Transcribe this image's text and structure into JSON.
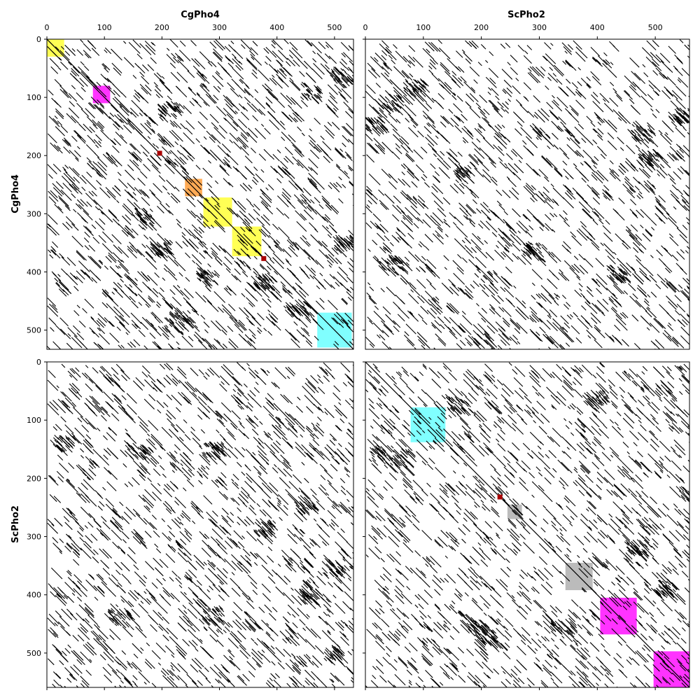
{
  "chart_data": {
    "type": "dotplot",
    "columns": [
      "CgPho4",
      "ScPho2"
    ],
    "rows": [
      "CgPho4",
      "ScPho2"
    ],
    "sequence_lengths": {
      "CgPho4": 533,
      "ScPho2": 559
    },
    "ticks": [
      0,
      100,
      200,
      300,
      400,
      500
    ],
    "tick_labels": [
      "0",
      "100",
      "200",
      "300",
      "400",
      "500"
    ],
    "grid": false,
    "y_axis_inverted": true,
    "colors": {
      "dots": "#000000",
      "yellow": "#ffff55",
      "magenta": "#ff33ff",
      "orange": "#ffaa55",
      "cyan": "#80ffff",
      "gray": "#bbbbbb",
      "dark_red": "#aa0000"
    },
    "panels": [
      {
        "id": "cgpho4-vs-cgpho4",
        "x_seq": "CgPho4",
        "y_seq": "CgPho4",
        "x_range": [
          0,
          533
        ],
        "y_range": [
          0,
          533
        ],
        "regions": [
          {
            "x": [
              0,
              30
            ],
            "y": [
              0,
              30
            ],
            "color": "yellow"
          },
          {
            "x": [
              80,
              110
            ],
            "y": [
              80,
              110
            ],
            "color": "magenta"
          },
          {
            "x": [
              240,
              270
            ],
            "y": [
              240,
              270
            ],
            "color": "orange"
          },
          {
            "x": [
              272,
              322
            ],
            "y": [
              272,
              322
            ],
            "color": "yellow"
          },
          {
            "x": [
              322,
              373
            ],
            "y": [
              322,
              373
            ],
            "color": "yellow"
          },
          {
            "x": [
              470,
              530
            ],
            "y": [
              470,
              530
            ],
            "color": "cyan"
          }
        ],
        "points": [
          {
            "x": 196,
            "y": 196,
            "color": "dark_red"
          },
          {
            "x": 377,
            "y": 377,
            "color": "dark_red"
          }
        ]
      },
      {
        "id": "scpho2-vs-cgpho4",
        "x_seq": "ScPho2",
        "y_seq": "CgPho4",
        "x_range": [
          0,
          559
        ],
        "y_range": [
          0,
          533
        ],
        "regions": [],
        "points": []
      },
      {
        "id": "cgpho4-vs-scpho2",
        "x_seq": "CgPho4",
        "y_seq": "ScPho2",
        "x_range": [
          0,
          533
        ],
        "y_range": [
          0,
          559
        ],
        "regions": [],
        "points": []
      },
      {
        "id": "scpho2-vs-scpho2",
        "x_seq": "ScPho2",
        "y_seq": "ScPho2",
        "x_range": [
          0,
          559
        ],
        "y_range": [
          0,
          559
        ],
        "regions": [
          {
            "x": [
              78,
              138
            ],
            "y": [
              78,
              138
            ],
            "color": "cyan"
          },
          {
            "x": [
              245,
              270
            ],
            "y": [
              245,
              270
            ],
            "color": "gray"
          },
          {
            "x": [
              345,
              392
            ],
            "y": [
              345,
              392
            ],
            "color": "gray"
          },
          {
            "x": [
              405,
              468
            ],
            "y": [
              405,
              468
            ],
            "color": "magenta"
          },
          {
            "x": [
              497,
              559
            ],
            "y": [
              497,
              559
            ],
            "color": "magenta"
          }
        ],
        "points": [
          {
            "x": 232,
            "y": 232,
            "color": "dark_red"
          }
        ]
      }
    ]
  }
}
